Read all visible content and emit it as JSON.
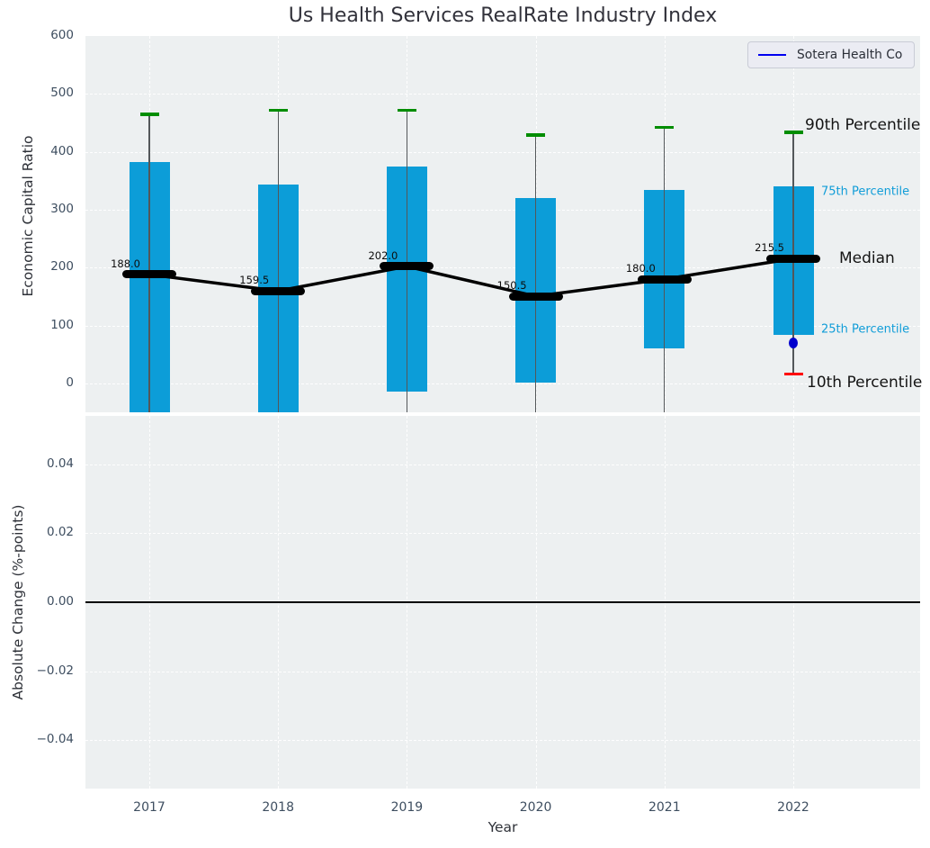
{
  "title": "Us Health Services RealRate Industry Index",
  "legend": {
    "label": "Sotera Health Co",
    "line_color": "#0000f0",
    "position": "upper right"
  },
  "annotations": {
    "p90": {
      "text": "90th Percentile",
      "color": "#141414"
    },
    "p75": {
      "text": "75th Percentile",
      "color": "#119dd8"
    },
    "median": {
      "text": "Median",
      "color": "#141414"
    },
    "p25": {
      "text": "25th Percentile",
      "color": "#119dd8"
    },
    "p10": {
      "text": "10th Percentile",
      "color": "#ff0000"
    }
  },
  "chart_data": {
    "type": "boxplot",
    "title": "Us Health Services RealRate Industry Index",
    "xlabel": "Year",
    "categories": [
      "2017",
      "2018",
      "2019",
      "2020",
      "2021",
      "2022"
    ],
    "clipping_note": "null percentile values extend below the visible axis (clipped)",
    "top_panel": {
      "ylabel": "Economic Capital Ratio",
      "ylim": [
        -50,
        600
      ],
      "yticks": [
        {
          "value": 0,
          "label": "0"
        },
        {
          "value": 100,
          "label": "100"
        },
        {
          "value": 200,
          "label": "200"
        },
        {
          "value": 300,
          "label": "300"
        },
        {
          "value": 400,
          "label": "400"
        },
        {
          "value": 500,
          "label": "500"
        },
        {
          "value": 600,
          "label": "600"
        }
      ],
      "boxes": [
        {
          "year": "2017",
          "p90": 465,
          "p75": 383,
          "median": 188.0,
          "median_label": "188.0",
          "p25": null,
          "p10": null
        },
        {
          "year": "2018",
          "p90": 472,
          "p75": 343,
          "median": 159.5,
          "median_label": "159.5",
          "p25": null,
          "p10": null
        },
        {
          "year": "2019",
          "p90": 472,
          "p75": 375,
          "median": 202.0,
          "median_label": "202.0",
          "p25": -14,
          "p10": null
        },
        {
          "year": "2020",
          "p90": 429,
          "p75": 320,
          "median": 150.5,
          "median_label": "150.5",
          "p25": 2,
          "p10": null
        },
        {
          "year": "2021",
          "p90": 442,
          "p75": 334,
          "median": 180.0,
          "median_label": "180.0",
          "p25": 60,
          "p10": null
        },
        {
          "year": "2022",
          "p90": 434,
          "p75": 341,
          "median": 215.5,
          "median_label": "215.5",
          "p25": 83,
          "p10": 16
        }
      ],
      "median_line_values": [
        188.0,
        159.5,
        202.0,
        150.5,
        180.0,
        215.5
      ],
      "sotera_point": {
        "year": "2022",
        "value": 70
      }
    },
    "bottom_panel": {
      "ylabel": "Absolute Change (%-points)",
      "ylim": [
        -0.054,
        0.054
      ],
      "yticks": [
        {
          "value": 0.04,
          "label": "0.04"
        },
        {
          "value": 0.02,
          "label": "0.02"
        },
        {
          "value": 0.0,
          "label": "0.00"
        },
        {
          "value": -0.02,
          "label": "−0.02"
        },
        {
          "value": -0.04,
          "label": "−0.04"
        }
      ],
      "zero_line": 0.0,
      "series": []
    },
    "colors": {
      "box_fill": "#0c9dd8",
      "p90_cap": "#008d00",
      "p10_cap": "#ff0000",
      "median": "#000000",
      "whisker": "#53575a",
      "sotera_dot": "#0000cd",
      "panel_bg": "#edf0f1",
      "grid": "#ffffff",
      "tick_text": "#3e4e60",
      "label_text": "#2e3138"
    },
    "grid": true
  }
}
